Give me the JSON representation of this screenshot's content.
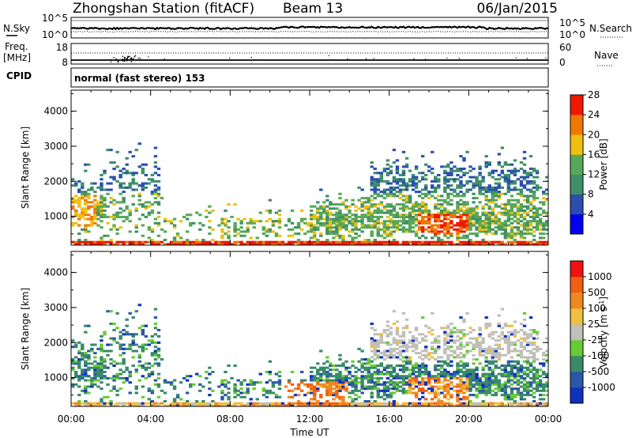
{
  "header": {
    "station": "Zhongshan Station (fitACF)",
    "beam": "Beam 13",
    "date": "06/Jan/2015"
  },
  "aux": {
    "nsky_label": "N.Sky",
    "nsky_ticks": [
      "10^5",
      "10^0"
    ],
    "nsearch_label": "N.Search",
    "nsearch_ticks": [
      "10^5",
      "10^0"
    ],
    "freq_label_top": "Freq.",
    "freq_label_bottom": "[MHz]",
    "freq_ticks": [
      "18",
      "8"
    ],
    "nave_label": "Nave",
    "nave_ticks": [
      "60",
      "0"
    ],
    "cpid_label": "CPID",
    "cpid_text": "normal (fast stereo) 153"
  },
  "chart_data": [
    {
      "type": "heatmap",
      "name": "power",
      "ylabel": "Slant Range [km]",
      "yticks": [
        "1000",
        "2000",
        "3000",
        "4000"
      ],
      "ylim": [
        180,
        4600
      ],
      "xlim": [
        0,
        24
      ],
      "colorbar": {
        "label": "Power [dB]",
        "ticks": [
          "4",
          "8",
          "12",
          "16",
          "20",
          "24",
          "28"
        ],
        "colors": [
          "#0000f0",
          "#2a4fb0",
          "#3f8f68",
          "#58a858",
          "#f0c010",
          "#f07800",
          "#f01800"
        ]
      }
    },
    {
      "type": "heatmap",
      "name": "velocity",
      "ylabel": "Slant Range [km]",
      "yticks": [
        "1000",
        "2000",
        "3000",
        "4000"
      ],
      "ylim": [
        180,
        4600
      ],
      "xlim": [
        0,
        24
      ],
      "colorbar": {
        "label": "Velocity [m s",
        "label_sup": "-1",
        "label_end": "]",
        "ticks": [
          "1000",
          "500",
          "100",
          "25",
          "-25",
          "-100",
          "-500",
          "-1000"
        ],
        "colors": [
          "#1030c0",
          "#2a58a8",
          "#3a8a68",
          "#66cc33",
          "#c0c0b8",
          "#f0c040",
          "#f08820",
          "#f06010",
          "#f01010"
        ]
      }
    }
  ],
  "xaxis": {
    "label": "Time UT",
    "ticks": [
      "00:00",
      "04:00",
      "08:00",
      "12:00",
      "16:00",
      "20:00",
      "00:00"
    ]
  }
}
